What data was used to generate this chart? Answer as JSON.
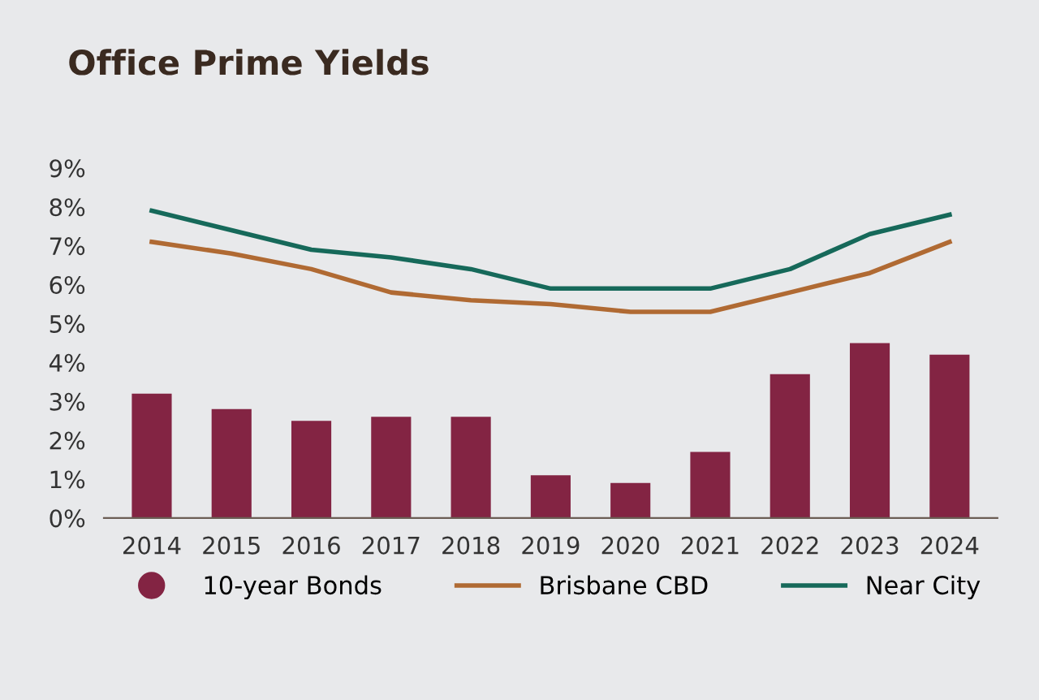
{
  "chart_data": {
    "type": "bar",
    "title": "Office Prime Yields",
    "categories": [
      "2014",
      "2015",
      "2016",
      "2017",
      "2018",
      "2019",
      "2020",
      "2021",
      "2022",
      "2023",
      "2024"
    ],
    "series": [
      {
        "name": "10-year Bonds",
        "color": "#832443",
        "values": [
          3.2,
          2.8,
          2.5,
          2.6,
          2.6,
          1.1,
          0.9,
          1.7,
          3.7,
          4.5,
          4.2
        ]
      },
      {
        "name": "Brisbane CBD",
        "type": "line",
        "color": "#b06a33",
        "values": [
          7.1,
          6.8,
          6.4,
          5.8,
          5.6,
          5.5,
          5.3,
          5.3,
          5.8,
          6.3,
          7.1
        ]
      },
      {
        "name": "Near City",
        "type": "line",
        "color": "#16695a",
        "values": [
          7.9,
          7.4,
          6.9,
          6.7,
          6.4,
          5.9,
          5.9,
          5.9,
          6.4,
          7.3,
          7.8
        ]
      }
    ],
    "ylim": [
      0,
      9
    ],
    "yticks": [
      {
        "value": 0,
        "label": "0%"
      },
      {
        "value": 1,
        "label": "1%"
      },
      {
        "value": 2,
        "label": "2%"
      },
      {
        "value": 3,
        "label": "3%"
      },
      {
        "value": 4,
        "label": "4%"
      },
      {
        "value": 5,
        "label": "5%"
      },
      {
        "value": 6,
        "label": "6%"
      },
      {
        "value": 7,
        "label": "7%"
      },
      {
        "value": 8,
        "label": "8%"
      },
      {
        "value": 9,
        "label": "9%"
      }
    ],
    "grid": false,
    "legend": "bottom",
    "marker": "none",
    "line_style": "solid"
  }
}
